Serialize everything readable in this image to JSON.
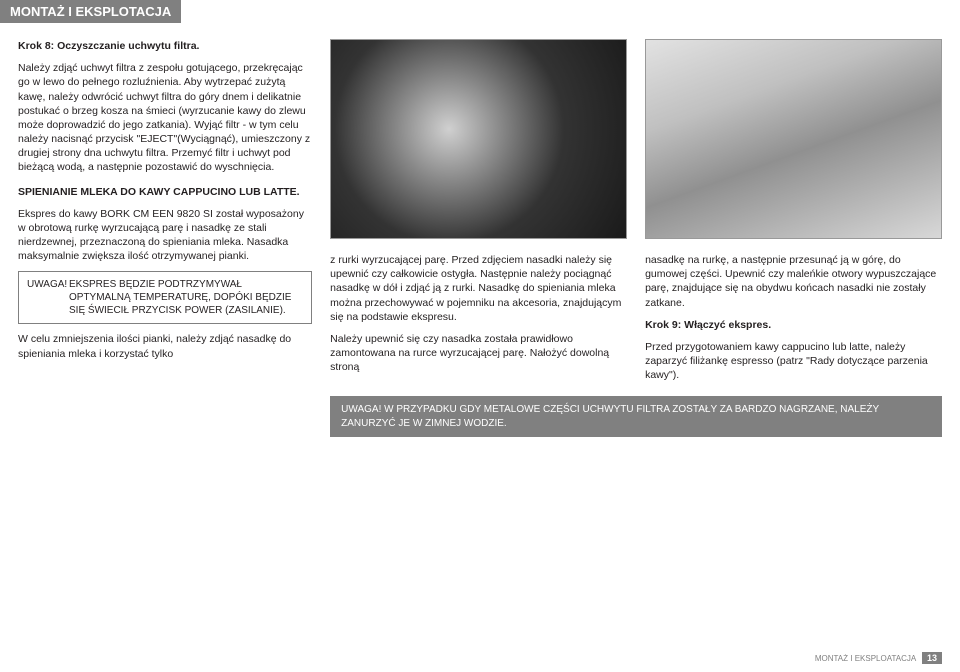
{
  "header": {
    "title": "MONTAŻ I EKSPLOTACJA"
  },
  "col1": {
    "step_title": "Krok 8: Oczyszczanie uchwytu filtra.",
    "p1": "Należy zdjąć uchwyt filtra z zespołu gotującego, przekręcając go w lewo do pełnego rozluźnienia. Aby wytrzepać zużytą kawę, należy odwrócić uchwyt filtra do góry dnem i delikatnie postukać o brzeg kosza na śmieci (wyrzucanie kawy do zlewu może doprowadzić do jego zatkania). Wyjąć filtr - w tym celu należy nacisnąć przycisk \"EJECT\"(Wyciągnąć), umieszczony z drugiej strony dna uchwytu filtra. Przemyć filtr i uchwyt pod bieżącą wodą, a następnie pozostawić do wyschnięcia.",
    "sub": "SPIENIANIE MLEKA DO KAWY CAPPUCINO LUB LATTE.",
    "p2": "Ekspres do kawy BORK CM EEN 9820 SI został wyposażony w obrotową rurkę wyrzucającą parę i nasadkę ze stali nierdzewnej, przeznaczoną do spieniania mleka. Nasadka maksymalnie zwiększa ilość otrzymywanej pianki.",
    "note_label": "UWAGA!",
    "note_body": "EKSPRES BĘDZIE PODTRZYMYWAŁ OPTYMALNĄ TEMPERATURĘ, DOPÓKI BĘDZIE SIĘ ŚWIECIŁ PRZYCISK POWER (ZASILANIE).",
    "p3": "W celu zmniejszenia ilości pianki, należy zdjąć nasadkę do spieniania mleka i korzystać tylko"
  },
  "col2": {
    "p1": "z rurki wyrzucającej parę. Przed zdjęciem nasadki należy się upewnić czy całkowicie ostygła. Następnie należy pociągnąć nasadkę w dół i zdjąć ją z rurki. Nasadkę do spieniania mleka można przechowywać w pojemniku na akcesoria, znajdującym się na podstawie ekspresu.",
    "p2": "Należy upewnić się czy nasadka została prawidłowo zamontowana na rurce wyrzucającej parę. Nałożyć dowolną stroną"
  },
  "col3": {
    "p1": "nasadkę na rurkę, a następnie przesunąć ją w górę, do gumowej części. Upewnić czy maleńkie otwory wypuszczające parę, znajdujące się na obydwu końcach nasadki nie zostały zatkane.",
    "step9": "Krok 9: Włączyć ekspres.",
    "p2": "Przed przygotowaniem kawy cappucino lub latte, należy zaparzyć filiżankę espresso (patrz \"Rady dotyczące parzenia kawy\")."
  },
  "wide_note": {
    "label": "UWAGA!",
    "body": "W PRZYPADKU GDY METALOWE CZĘŚCI UCHWYTU FILTRA ZOSTAŁY ZA BARDZO NAGRZANE, NALEŻY ZANURZYĆ JE W ZIMNEJ WODZIE."
  },
  "footer": {
    "text": "MONTAŻ I EKSPLOATACJA",
    "page": "13"
  }
}
